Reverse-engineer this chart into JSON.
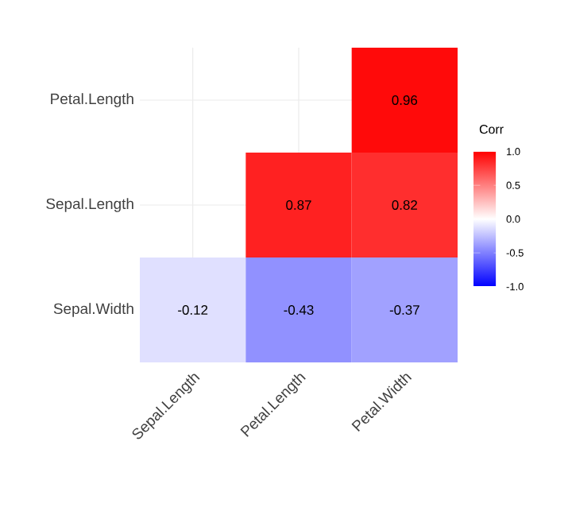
{
  "chart_data": {
    "type": "heatmap",
    "categories": [
      "Sepal.Length",
      "Petal.Length",
      "Petal.Width"
    ],
    "y_categories": [
      "Petal.Length",
      "Sepal.Length",
      "Sepal.Width"
    ],
    "cells": [
      [
        null,
        null,
        0.96
      ],
      [
        null,
        0.87,
        0.82
      ],
      [
        -0.12,
        -0.43,
        -0.37
      ]
    ],
    "data_labels": true,
    "clabel": "Corr",
    "clim": [
      -1,
      1
    ],
    "cticks": [
      {
        "value": -1,
        "label": "-1.0"
      },
      {
        "value": -0.5,
        "label": "-0.5"
      },
      {
        "value": 0,
        "label": "0.0"
      },
      {
        "value": 0.5,
        "label": "0.5"
      },
      {
        "value": 1,
        "label": "1.0"
      }
    ],
    "grid": true
  }
}
